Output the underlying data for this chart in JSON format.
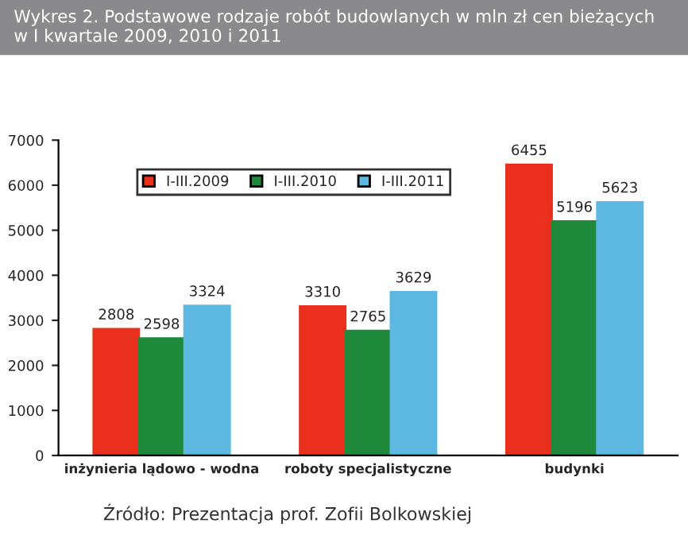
{
  "chart_data": {
    "type": "bar",
    "title": "Wykres 2. Podstawowe rodzaje robót budowlanych w mln zł cen bieżących\nw I kwartale 2009, 2010 i 2011",
    "categories": [
      "inżynieria lądowo - wodna",
      "roboty specjalistyczne",
      "budynki"
    ],
    "series": [
      {
        "name": "I-III.2009",
        "color": "#e8301c",
        "values": [
          2808,
          3310,
          6455
        ]
      },
      {
        "name": "I-III.2010",
        "color": "#1f8a3c",
        "values": [
          2598,
          2765,
          5196
        ]
      },
      {
        "name": "I-III.2011",
        "color": "#5cb8e0",
        "values": [
          3324,
          3629,
          5623
        ]
      }
    ],
    "ylim": [
      0,
      7000
    ],
    "yticks": [
      0,
      1000,
      2000,
      3000,
      4000,
      5000,
      6000,
      7000
    ],
    "grid": false,
    "legend": "top",
    "data_labels": true,
    "annotations": [
      "Źródło: Prezentacja prof. Zofii Bolkowskiej"
    ]
  }
}
